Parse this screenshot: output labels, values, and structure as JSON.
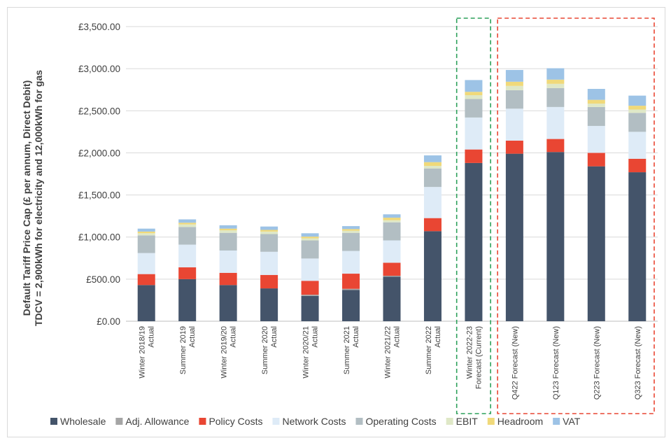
{
  "chart_data": {
    "type": "bar",
    "stacked": true,
    "title": "",
    "ylabel_line1": "Default Tariff Price Cap (£ per annum, Direct Debit)",
    "ylabel_line2": "TDCV = 2,900kWh for electricity and 12,000kWh for gas",
    "xlabel": "",
    "ylim": [
      0,
      3500
    ],
    "yticks": [
      0,
      500,
      1000,
      1500,
      2000,
      2500,
      3000,
      3500
    ],
    "ytick_labels": [
      "£0.00",
      "£500.00",
      "£1,000.00",
      "£1,500.00",
      "£2,000.00",
      "£2,500.00",
      "£3,000.00",
      "£3,500.00"
    ],
    "grid": true,
    "legend_position": "bottom",
    "categories": [
      [
        "Winter 2018/19",
        "Actual"
      ],
      [
        "Summer 2019",
        "Actual"
      ],
      [
        "Winter 2019/20",
        "Actual"
      ],
      [
        "Summer 2020",
        "Actual"
      ],
      [
        "Winter 2020/21",
        "Actual"
      ],
      [
        "Summer 2021",
        "Actual"
      ],
      [
        "Winter 2021/22",
        "Actual"
      ],
      [
        "Summer 2022",
        "Actual"
      ],
      [
        "Winter 2022-23",
        "Forecast (Current)"
      ],
      [
        "Q422 Forecast (New)"
      ],
      [
        "Q123 Forecast (New)"
      ],
      [
        "Q223 Forecast (New)"
      ],
      [
        "Q323 Forecast (New)"
      ]
    ],
    "series": [
      {
        "name": "Wholesale",
        "color": "#44546a",
        "values": [
          430,
          500,
          430,
          390,
          300,
          370,
          530,
          1070,
          1880,
          1990,
          2010,
          1840,
          1770
        ]
      },
      {
        "name": "Adj. Allowance",
        "color": "#a5a5a5",
        "values": [
          0,
          0,
          0,
          0,
          15,
          15,
          10,
          0,
          0,
          0,
          0,
          0,
          0
        ]
      },
      {
        "name": "Policy Costs",
        "color": "#e94633",
        "values": [
          130,
          140,
          145,
          160,
          165,
          180,
          155,
          155,
          160,
          155,
          155,
          160,
          160
        ]
      },
      {
        "name": "Network Costs",
        "color": "#deebf7",
        "values": [
          250,
          270,
          265,
          275,
          265,
          270,
          265,
          370,
          380,
          380,
          380,
          320,
          320
        ]
      },
      {
        "name": "Operating Costs",
        "color": "#b2bec3",
        "values": [
          210,
          210,
          210,
          210,
          215,
          215,
          215,
          220,
          220,
          220,
          225,
          225,
          225
        ]
      },
      {
        "name": "EBIT",
        "color": "#dfe8c7",
        "values": [
          25,
          30,
          30,
          30,
          25,
          25,
          25,
          30,
          45,
          50,
          50,
          40,
          40
        ]
      },
      {
        "name": "Headroom",
        "color": "#f0d97a",
        "values": [
          20,
          20,
          20,
          20,
          20,
          20,
          30,
          45,
          40,
          50,
          50,
          45,
          45
        ]
      },
      {
        "name": "VAT",
        "color": "#9dc3e6",
        "values": [
          35,
          40,
          40,
          40,
          40,
          35,
          40,
          80,
          140,
          140,
          135,
          130,
          120
        ]
      }
    ],
    "annotations": [
      {
        "type": "dashed-box",
        "color": "#2ca05a",
        "around": [
          "Winter 2022-23 Forecast (Current)"
        ]
      },
      {
        "type": "dashed-box",
        "color": "#e94633",
        "around": [
          "Q422 Forecast (New)",
          "Q123 Forecast (New)",
          "Q223 Forecast (New)",
          "Q323 Forecast (New)"
        ]
      }
    ]
  }
}
